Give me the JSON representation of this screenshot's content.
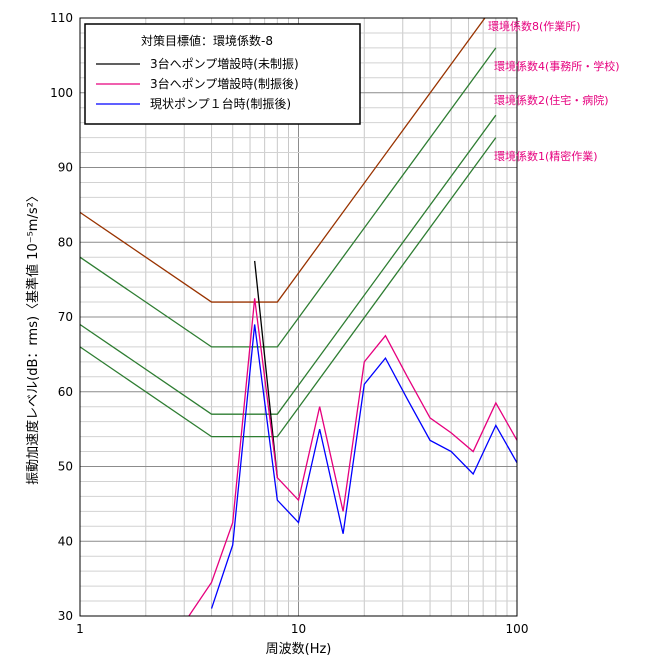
{
  "chart_data": {
    "type": "line",
    "x_scale": "log",
    "xlim": [
      1,
      100
    ],
    "ylim": [
      30,
      110
    ],
    "x_ticks": [
      "1",
      "10",
      "100"
    ],
    "y_ticks": [
      "30",
      "40",
      "50",
      "60",
      "70",
      "80",
      "90",
      "100",
      "110"
    ],
    "xlabel": "周波数(Hz)",
    "ylabel": "振動加速度レベル(dB：rms)〈基準値 10⁻⁵m/s²〉",
    "grid": true,
    "legend": {
      "title": "対策目標値：環境係数-8",
      "placement": "top-left"
    },
    "reference_lines": [
      {
        "name": "環境係数8(作業所)",
        "color": "#993300",
        "points": [
          [
            1,
            84
          ],
          [
            4,
            72
          ],
          [
            8,
            72
          ],
          [
            80,
            112
          ]
        ]
      },
      {
        "name": "環境係数4(事務所・学校)",
        "color": "#2e7d32",
        "points": [
          [
            1,
            78
          ],
          [
            4,
            66
          ],
          [
            8,
            66
          ],
          [
            80,
            106
          ]
        ]
      },
      {
        "name": "環境係数2(住宅・病院)",
        "color": "#2e7d32",
        "points": [
          [
            1,
            69
          ],
          [
            4,
            57
          ],
          [
            8,
            57
          ],
          [
            80,
            97
          ]
        ]
      },
      {
        "name": "環境係数1(精密作業)",
        "color": "#2e7d32",
        "points": [
          [
            1,
            66
          ],
          [
            4,
            54
          ],
          [
            8,
            54
          ],
          [
            80,
            94
          ]
        ]
      }
    ],
    "series": [
      {
        "name": "3台へポンプ増設時(未制振)",
        "color": "#000000",
        "x": [
          6.3,
          8
        ],
        "y": [
          77.5,
          48.5
        ]
      },
      {
        "name": "3台へポンプ増設時(制振後)",
        "color": "#e6007e",
        "x": [
          3.15,
          4,
          5,
          6.3,
          8,
          10,
          12.5,
          16,
          20,
          25,
          31.5,
          40,
          50,
          63,
          80,
          100
        ],
        "y": [
          30,
          34.5,
          42.5,
          72.5,
          48.5,
          45.5,
          58,
          44,
          64,
          67.5,
          62,
          56.5,
          54.5,
          52,
          58.5,
          53.5
        ]
      },
      {
        "name": "現状ポンプ１台時(制振後)",
        "color": "#0000ff",
        "x": [
          4,
          5,
          6.3,
          8,
          10,
          12.5,
          16,
          20,
          25,
          31.5,
          40,
          50,
          63,
          80,
          100
        ],
        "y": [
          31,
          39.5,
          69,
          45.5,
          42.5,
          55,
          41,
          61,
          64.5,
          59,
          53.5,
          52,
          49,
          55.5,
          50.5
        ]
      }
    ]
  }
}
